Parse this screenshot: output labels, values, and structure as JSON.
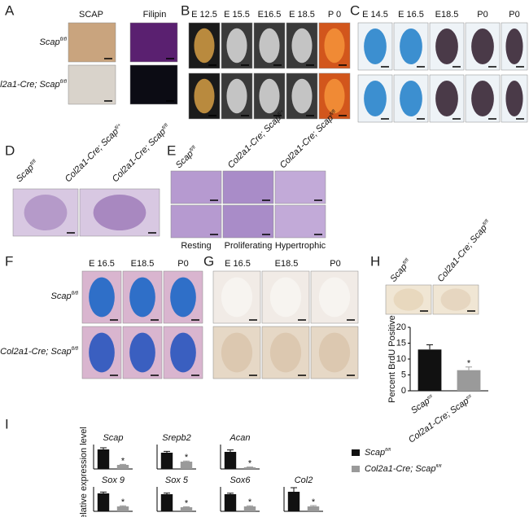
{
  "figure": {
    "A": {
      "label": "A",
      "columns": [
        "SCAP",
        "Filipin"
      ],
      "rows": [
        {
          "text": "Scap",
          "sup": "fl/fl"
        },
        {
          "text": "Col2a1-Cre; Scap",
          "sup": "fl/fl"
        }
      ]
    },
    "B": {
      "label": "B",
      "columns": [
        "E 12.5",
        "E 15.5",
        "E16.5",
        "E 18.5",
        "P 0"
      ]
    },
    "C": {
      "label": "C",
      "columns": [
        "E 14.5",
        "E 16.5",
        "E18.5",
        "P0",
        "P0"
      ]
    },
    "D": {
      "label": "D",
      "columns": [
        {
          "text": "Scap",
          "sup": "fl/fl"
        },
        {
          "text": "Col2a1-Cre; Scap",
          "sup": "fl/+"
        },
        {
          "text": "Col2a1-Cre; Scap",
          "sup": "fl/fl"
        }
      ]
    },
    "E": {
      "label": "E",
      "columns": [
        {
          "text": "Scap",
          "sup": "fl/fl"
        },
        {
          "text": "Col2a1-Cre; Scap",
          "sup": "fl/+"
        },
        {
          "text": "Col2a1-Cre; Scap",
          "sup": "fl/fl"
        }
      ],
      "zones": [
        "Resting",
        "Proliferating",
        "Hypertrophic"
      ]
    },
    "F": {
      "label": "F",
      "columns": [
        "E 16.5",
        "E18.5",
        "P0"
      ],
      "rows": [
        {
          "text": "Scap",
          "sup": "fl/fl"
        },
        {
          "text": "Col2a1-Cre; Scap",
          "sup": "fl/fl"
        }
      ]
    },
    "G": {
      "label": "G",
      "columns": [
        "E 16.5",
        "E18.5",
        "P0"
      ]
    },
    "H": {
      "label": "H",
      "columns": [
        {
          "text": "Scap",
          "sup": "fl/fl"
        },
        {
          "text": "Col2a1-Cre; Scap",
          "sup": "fl/fl"
        }
      ]
    },
    "I": {
      "label": "I",
      "ylabel": "Relative expression level",
      "legend": [
        {
          "text": "Scap",
          "sup": "fl/fl",
          "color": "#111111"
        },
        {
          "text": "Col2a1-Cre; Scap",
          "sup": "fl/fl",
          "color": "#9a9a9a"
        }
      ]
    }
  },
  "chart_data": [
    {
      "type": "bar",
      "ylabel": "Percent BrdU Positive",
      "categories": [
        {
          "text": "Scap",
          "sup": "fl/fl"
        },
        {
          "text": "Col2a1-Cre; Scap",
          "sup": "fl/fl"
        }
      ],
      "values": [
        13,
        6.5
      ],
      "errors": [
        1.5,
        1
      ],
      "colors": [
        "#111111",
        "#9a9a9a"
      ],
      "ylim": [
        0,
        20
      ],
      "yticks": [
        0,
        5,
        10,
        15,
        20
      ],
      "annotation": "*"
    },
    {
      "type": "bar",
      "title": "Scap",
      "values": [
        1.2,
        0.25
      ],
      "errors": [
        0.1,
        0.03
      ],
      "colors": [
        "#111111",
        "#9a9a9a"
      ],
      "ylim": [
        0,
        1.5
      ],
      "annotation": "*"
    },
    {
      "type": "bar",
      "title": "Srepb2",
      "values": [
        1.0,
        0.45
      ],
      "errors": [
        0.08,
        0.04
      ],
      "colors": [
        "#111111",
        "#9a9a9a"
      ],
      "ylim": [
        0,
        1.5
      ],
      "annotation": "*"
    },
    {
      "type": "bar",
      "title": "Acan",
      "values": [
        1.05,
        0.1
      ],
      "errors": [
        0.12,
        0.02
      ],
      "colors": [
        "#111111",
        "#9a9a9a"
      ],
      "ylim": [
        0,
        1.5
      ],
      "annotation": "*"
    },
    {
      "type": "bar",
      "title": "Sox 9",
      "values": [
        1.1,
        0.3
      ],
      "errors": [
        0.08,
        0.04
      ],
      "colors": [
        "#111111",
        "#9a9a9a"
      ],
      "ylim": [
        0,
        1.5
      ],
      "annotation": "*"
    },
    {
      "type": "bar",
      "title": "Sox 5",
      "values": [
        1.05,
        0.25
      ],
      "errors": [
        0.07,
        0.03
      ],
      "colors": [
        "#111111",
        "#9a9a9a"
      ],
      "ylim": [
        0,
        1.5
      ],
      "annotation": "*"
    },
    {
      "type": "bar",
      "title": "Sox6",
      "values": [
        1.05,
        0.3
      ],
      "errors": [
        0.06,
        0.04
      ],
      "colors": [
        "#111111",
        "#9a9a9a"
      ],
      "ylim": [
        0,
        1.5
      ],
      "annotation": "*"
    },
    {
      "type": "bar",
      "title": "Col2",
      "values": [
        1.2,
        0.3
      ],
      "errors": [
        0.25,
        0.05
      ],
      "colors": [
        "#111111",
        "#9a9a9a"
      ],
      "ylim": [
        0,
        1.5
      ],
      "annotation": "*"
    }
  ]
}
